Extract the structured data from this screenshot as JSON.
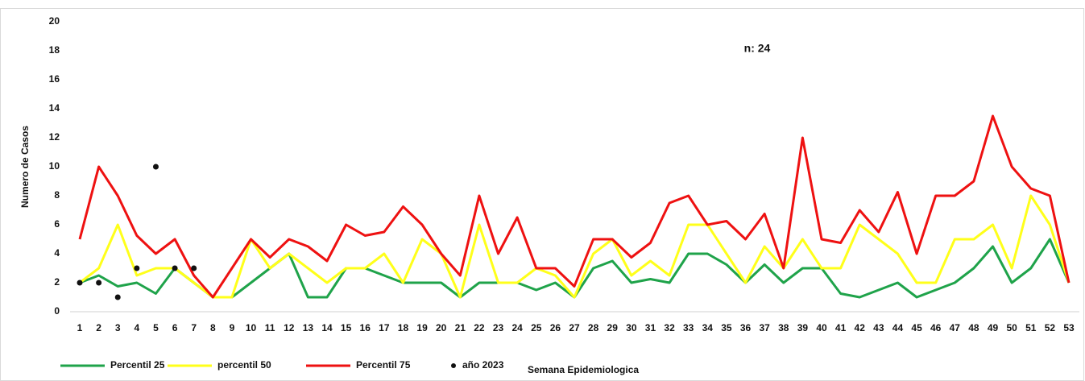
{
  "chart_data": {
    "type": "line",
    "y_label": "Numero de Casos",
    "x_label": "Semana Epidemiologica",
    "annotation": "n: 24",
    "categories": [
      1,
      2,
      3,
      4,
      5,
      6,
      7,
      8,
      9,
      10,
      11,
      12,
      13,
      14,
      15,
      16,
      17,
      18,
      19,
      20,
      21,
      22,
      23,
      24,
      25,
      26,
      27,
      28,
      29,
      30,
      31,
      32,
      33,
      34,
      35,
      36,
      37,
      38,
      39,
      40,
      41,
      42,
      43,
      44,
      45,
      46,
      47,
      48,
      49,
      50,
      51,
      52,
      53
    ],
    "ylim": [
      0,
      20
    ],
    "yticks": [
      0,
      2,
      4,
      6,
      8,
      10,
      12,
      14,
      16,
      18,
      20
    ],
    "grid": false,
    "legend": "bottom",
    "series": [
      {
        "name": "Percentil 25",
        "color": "#1fa34a",
        "style": "line",
        "values": [
          2,
          2.5,
          1.75,
          2,
          1.25,
          3,
          2,
          1,
          1,
          2,
          3,
          4,
          1,
          1,
          3,
          3,
          2.5,
          2,
          2,
          2,
          1,
          2,
          2,
          2,
          1.5,
          2,
          1,
          3,
          3.5,
          2,
          2.25,
          2,
          4,
          4,
          3.25,
          2,
          3.25,
          2,
          3,
          3,
          1.25,
          1,
          1.5,
          2,
          1,
          1.5,
          2,
          3,
          4.5,
          2,
          3,
          5,
          2
        ]
      },
      {
        "name": "percentil 50",
        "color": "#ffff1a",
        "style": "line",
        "values": [
          2,
          3,
          6,
          2.5,
          3,
          3,
          2,
          1,
          1,
          5,
          3,
          4,
          3,
          2,
          3,
          3,
          4,
          2,
          5,
          4,
          1,
          6,
          2,
          2,
          3,
          2.5,
          1,
          4,
          5,
          2.5,
          3.5,
          2.5,
          6,
          6,
          4,
          2,
          4.5,
          3,
          5,
          3,
          3,
          6,
          5,
          4,
          2,
          2,
          5,
          5,
          6,
          3,
          8,
          6,
          2
        ]
      },
      {
        "name": "Percentil 75",
        "color": "#ee1111",
        "style": "line",
        "values": [
          5,
          10,
          8,
          5.25,
          4,
          5,
          2.5,
          1,
          3,
          5,
          3.75,
          5,
          4.5,
          3.5,
          6,
          5.25,
          5.5,
          7.25,
          6,
          4,
          2.5,
          8,
          4,
          6.5,
          3,
          3,
          1.75,
          5,
          5,
          3.75,
          4.75,
          7.5,
          8,
          6,
          6.25,
          5,
          6.75,
          3,
          12,
          5,
          4.75,
          7,
          5.5,
          8.25,
          4,
          8,
          8,
          9,
          13.5,
          10,
          8.5,
          8,
          2
        ]
      },
      {
        "name": "año 2023",
        "color": "#111111",
        "style": "marker",
        "values": [
          2,
          2,
          1,
          3,
          10,
          3,
          3,
          null,
          null,
          null,
          null,
          null,
          null,
          null,
          null,
          null,
          null,
          null,
          null,
          null,
          null,
          null,
          null,
          null,
          null,
          null,
          null,
          null,
          null,
          null,
          null,
          null,
          null,
          null,
          null,
          null,
          null,
          null,
          null,
          null,
          null,
          null,
          null,
          null,
          null,
          null,
          null,
          null,
          null,
          null,
          null,
          null,
          null
        ]
      }
    ]
  }
}
